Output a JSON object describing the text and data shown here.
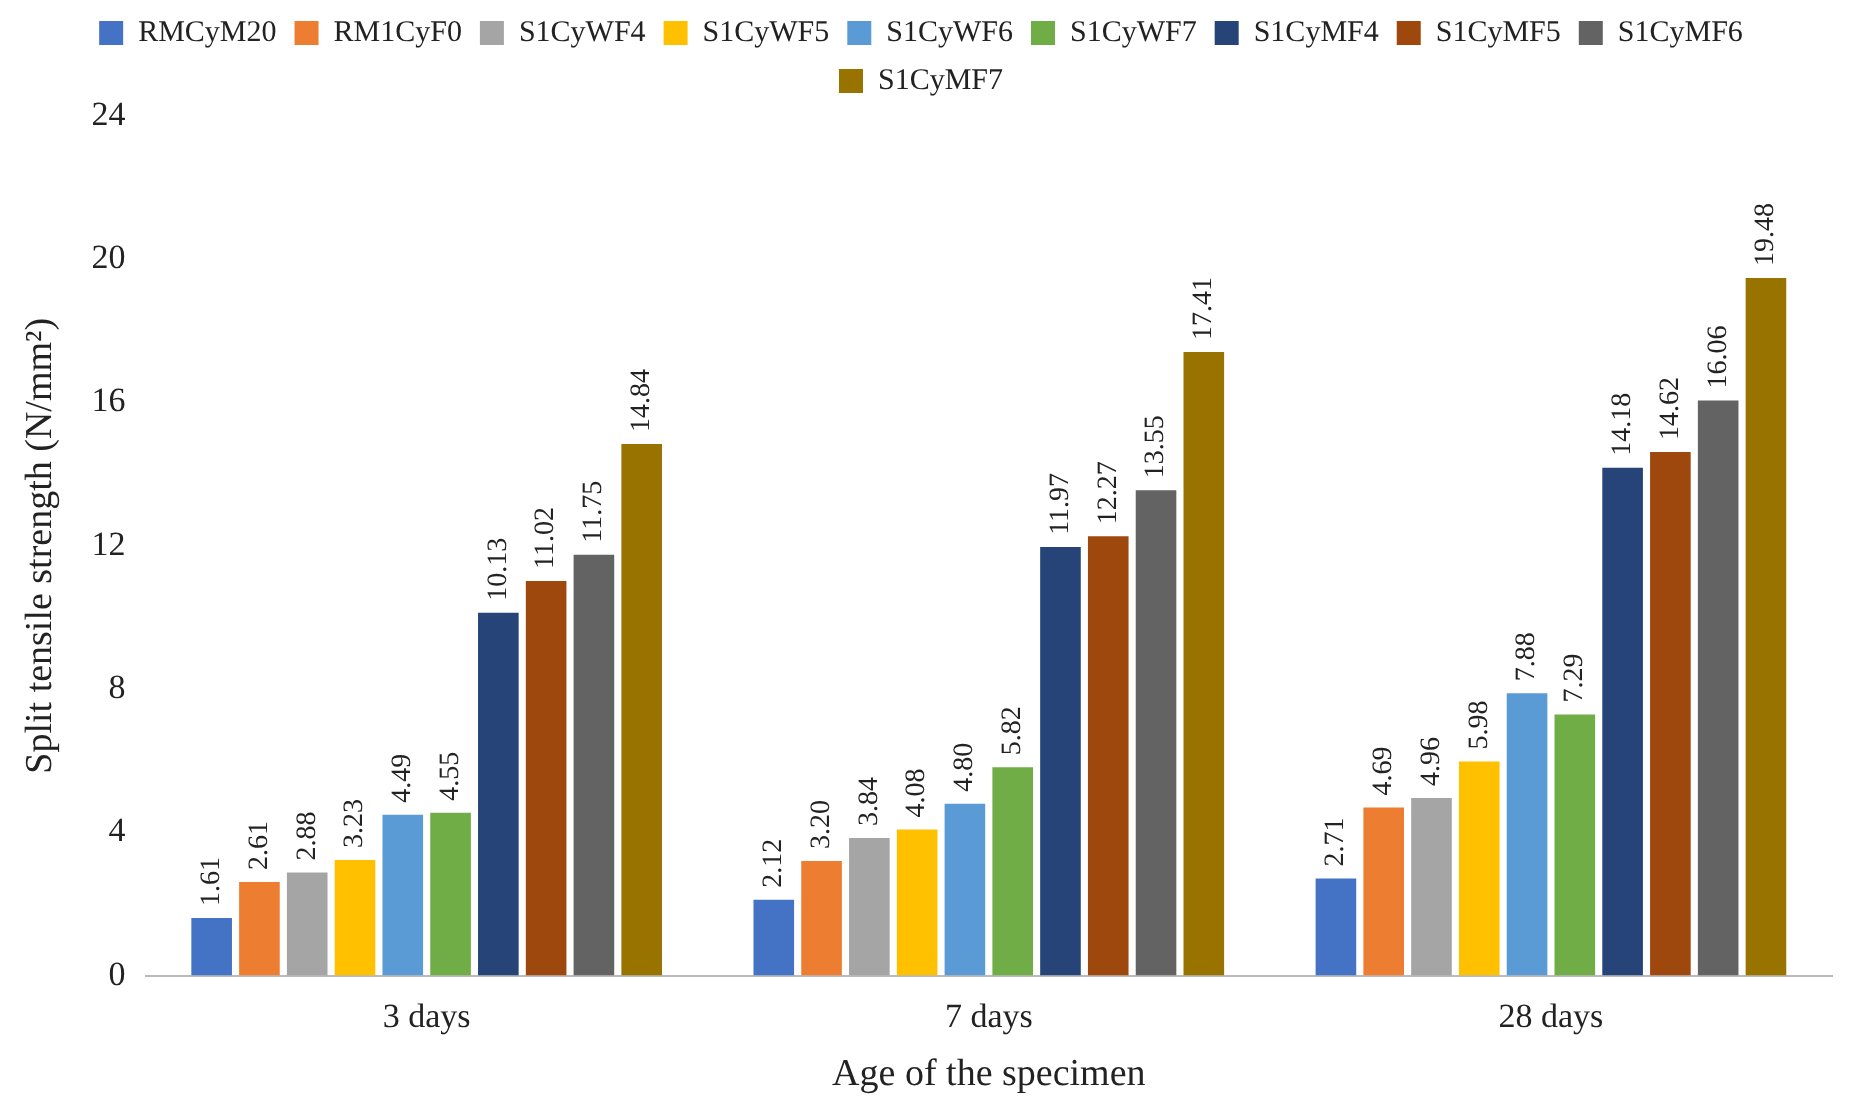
{
  "chart_data": {
    "type": "bar",
    "xlabel": "Age of the specimen",
    "ylabel": "Split tensile strength (N/mm²)",
    "categories": [
      "3 days",
      "7 days",
      "28 days"
    ],
    "ylim": [
      0,
      24
    ],
    "yticks": [
      0,
      4,
      8,
      12,
      16,
      20,
      24
    ],
    "grid": false,
    "legend": "top",
    "series": [
      {
        "name": "RMCyM20",
        "color": "#4472c4",
        "values": [
          1.61,
          2.12,
          2.71
        ],
        "value_labels": [
          "1.61",
          "2.12",
          "2.71"
        ]
      },
      {
        "name": "RM1CyF0",
        "color": "#ed7d31",
        "values": [
          2.61,
          3.2,
          4.69
        ],
        "value_labels": [
          "2.61",
          "3.20",
          "4.69"
        ]
      },
      {
        "name": "S1CyWF4",
        "color": "#a5a5a5",
        "values": [
          2.88,
          3.84,
          4.96
        ],
        "value_labels": [
          "2.88",
          "3.84",
          "4.96"
        ]
      },
      {
        "name": "S1CyWF5",
        "color": "#ffc000",
        "values": [
          3.23,
          4.08,
          5.98
        ],
        "value_labels": [
          "3.23",
          "4.08",
          "5.98"
        ]
      },
      {
        "name": "S1CyWF6",
        "color": "#5b9bd5",
        "values": [
          4.49,
          4.8,
          7.88
        ],
        "value_labels": [
          "4.49",
          "4.80",
          "7.88"
        ]
      },
      {
        "name": "S1CyWF7",
        "color": "#70ad47",
        "values": [
          4.55,
          5.82,
          7.29
        ],
        "value_labels": [
          "4.55",
          "5.82",
          "7.29"
        ]
      },
      {
        "name": "S1CyMF4",
        "color": "#264478",
        "values": [
          10.13,
          11.97,
          14.18
        ],
        "value_labels": [
          "10.13",
          "11.97",
          "14.18"
        ]
      },
      {
        "name": "S1CyMF5",
        "color": "#9e480e",
        "values": [
          11.02,
          12.27,
          14.62
        ],
        "value_labels": [
          "11.02",
          "12.27",
          "14.62"
        ]
      },
      {
        "name": "S1CyMF6",
        "color": "#636363",
        "values": [
          11.75,
          13.55,
          16.06
        ],
        "value_labels": [
          "11.75",
          "13.55",
          "16.06"
        ]
      },
      {
        "name": "S1CyMF7",
        "color": "#997300",
        "values": [
          14.84,
          17.41,
          19.48
        ],
        "value_labels": [
          "14.84",
          "17.41",
          "19.48"
        ]
      }
    ]
  }
}
